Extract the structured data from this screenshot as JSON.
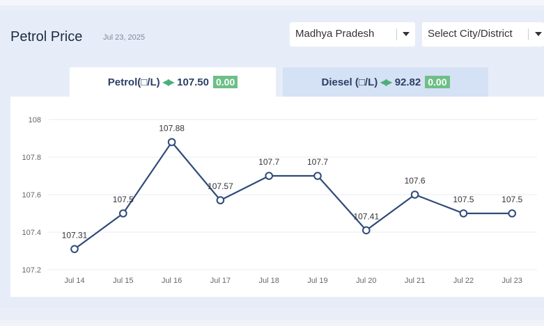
{
  "header": {
    "title": "Petrol Price",
    "date": "Jul 23, 2025"
  },
  "filters": {
    "state": "Madhya Pradesh",
    "city": "Select City/District"
  },
  "tabs": {
    "petrol": {
      "label": "Petrol(□/L)",
      "price": "107.50",
      "change": "0.00"
    },
    "diesel": {
      "label": "Diesel (□/L)",
      "price": "92.82",
      "change": "0.00"
    }
  },
  "colors": {
    "line": "#2e4a78",
    "badge": "#6dbf87",
    "active_tab": "#ffffff",
    "inactive_tab": "#d5e1f4"
  },
  "chart_data": {
    "type": "line",
    "categories": [
      "Jul 14",
      "Jul 15",
      "Jul 16",
      "Jul 17",
      "Jul 18",
      "Jul 19",
      "Jul 20",
      "Jul 21",
      "Jul 22",
      "Jul 23"
    ],
    "values": [
      107.31,
      107.5,
      107.88,
      107.57,
      107.7,
      107.7,
      107.41,
      107.6,
      107.5,
      107.5
    ],
    "data_labels": [
      "107.31",
      "107.5",
      "107.88",
      "107.57",
      "107.7",
      "107.7",
      "107.41",
      "107.6",
      "107.5",
      "107.5"
    ],
    "yticks": [
      "107.2",
      "107.4",
      "107.6",
      "107.8",
      "108"
    ],
    "ylim": [
      107.2,
      108.0
    ],
    "grid": true
  }
}
